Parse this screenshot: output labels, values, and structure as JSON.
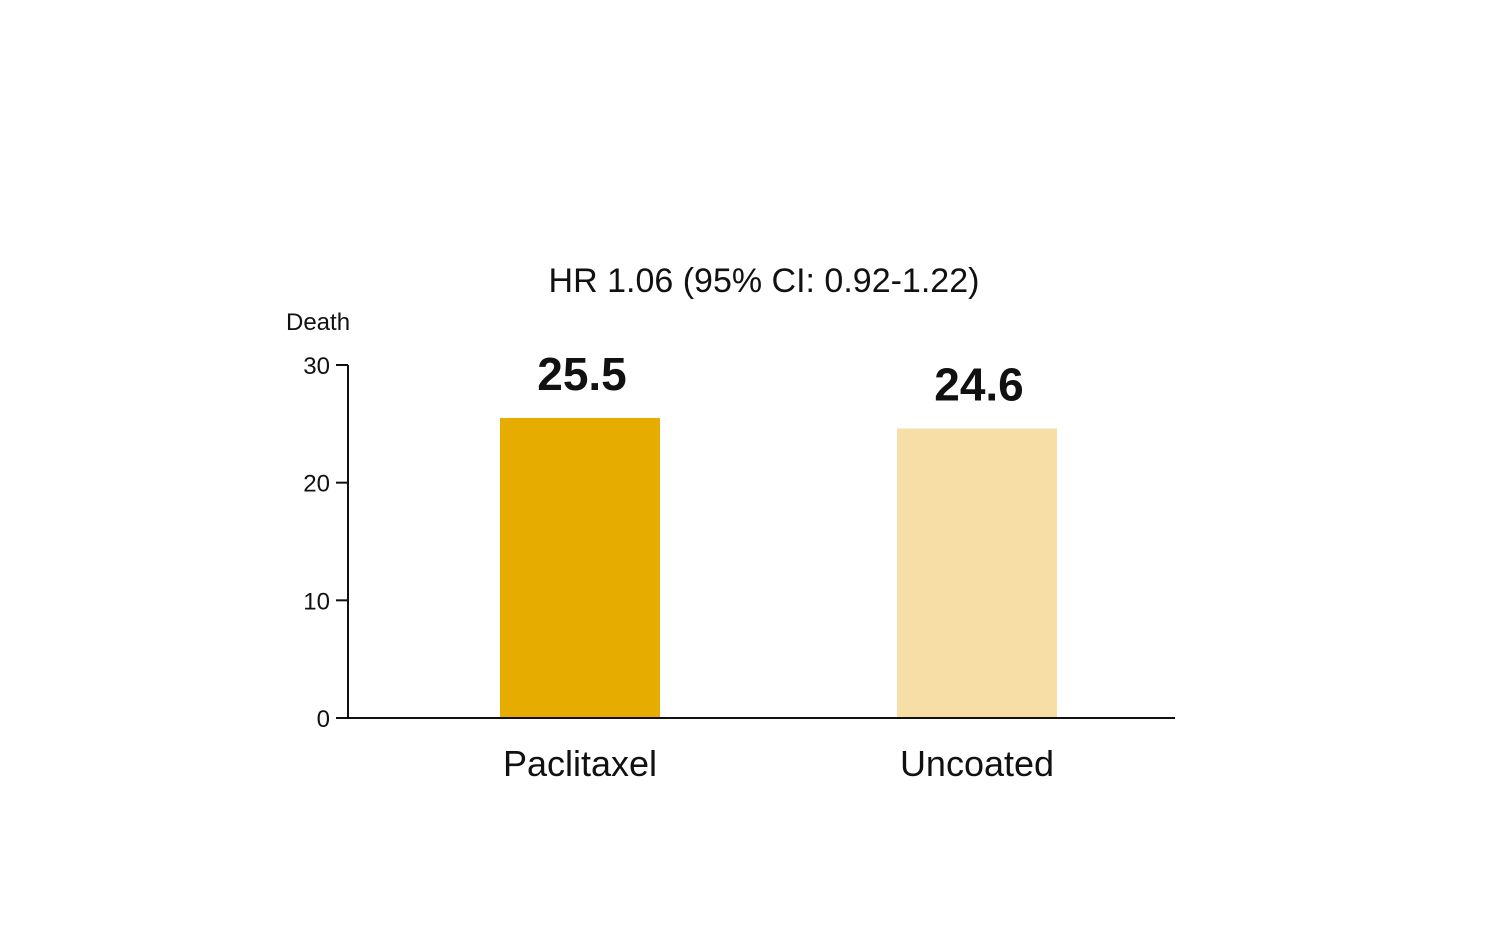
{
  "chart_data": {
    "type": "bar",
    "title": "HR 1.06 (95% CI: 0.92-1.22)",
    "ylabel": "Death",
    "xlabel": "",
    "ylim": [
      0,
      30
    ],
    "yticks": [
      0,
      10,
      20,
      30
    ],
    "categories": [
      "Paclitaxel",
      "Uncoated"
    ],
    "values": [
      25.5,
      24.6
    ],
    "value_labels": [
      "25.5",
      "24.6"
    ],
    "colors": [
      "#E6AD00",
      "#F7DDA6"
    ],
    "grid": false,
    "legend": "none"
  }
}
